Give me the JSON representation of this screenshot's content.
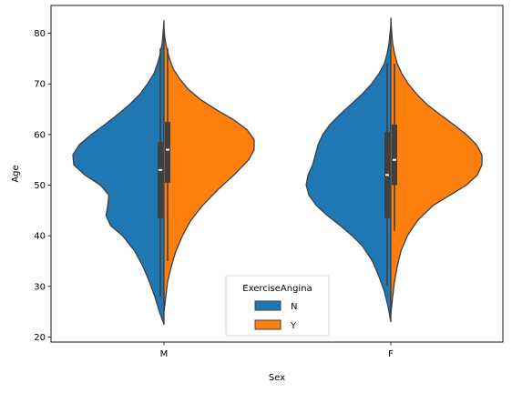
{
  "chart_data": {
    "type": "violin",
    "split": true,
    "xlabel": "Sex",
    "ylabel": "Age",
    "categories": [
      "M",
      "F"
    ],
    "ylim": [
      19,
      85.5
    ],
    "yticks": [
      20,
      30,
      40,
      50,
      60,
      70,
      80
    ],
    "grid": false,
    "legend": {
      "title": "ExerciseAngina",
      "placement": "lower-center",
      "entries": [
        "N",
        "Y"
      ]
    },
    "series": [
      {
        "name": "N",
        "color": "#1f77b4",
        "side": "left",
        "violins": [
          {
            "category": "M",
            "min": 22.5,
            "max": 82.5,
            "q1": 43.5,
            "median": 53,
            "q3": 58.5,
            "whisker_low": 28,
            "whisker_high": 77,
            "density": [
              [
                22.5,
                0
              ],
              [
                25,
                0.05
              ],
              [
                28,
                0.1
              ],
              [
                31,
                0.16
              ],
              [
                34,
                0.23
              ],
              [
                37,
                0.32
              ],
              [
                40,
                0.45
              ],
              [
                42,
                0.58
              ],
              [
                44,
                0.63
              ],
              [
                46,
                0.61
              ],
              [
                48,
                0.6
              ],
              [
                50,
                0.69
              ],
              [
                52,
                0.86
              ],
              [
                54,
                0.98
              ],
              [
                56,
                0.99
              ],
              [
                58,
                0.92
              ],
              [
                60,
                0.79
              ],
              [
                62,
                0.64
              ],
              [
                64,
                0.5
              ],
              [
                66,
                0.37
              ],
              [
                68,
                0.26
              ],
              [
                70,
                0.18
              ],
              [
                72,
                0.11
              ],
              [
                74,
                0.07
              ],
              [
                76,
                0.04
              ],
              [
                78,
                0.02
              ],
              [
                80,
                0.01
              ],
              [
                82.5,
                0
              ]
            ]
          },
          {
            "category": "F",
            "min": 23,
            "max": 81.5,
            "q1": 43.5,
            "median": 52,
            "q3": 60.5,
            "whisker_low": 30,
            "whisker_high": 74,
            "density": [
              [
                23,
                0
              ],
              [
                26,
                0.03
              ],
              [
                29,
                0.07
              ],
              [
                32,
                0.13
              ],
              [
                35,
                0.2
              ],
              [
                38,
                0.31
              ],
              [
                40,
                0.42
              ],
              [
                42,
                0.55
              ],
              [
                44,
                0.69
              ],
              [
                46,
                0.81
              ],
              [
                48,
                0.89
              ],
              [
                50,
                0.92
              ],
              [
                52,
                0.9
              ],
              [
                54,
                0.85
              ],
              [
                56,
                0.82
              ],
              [
                58,
                0.79
              ],
              [
                60,
                0.74
              ],
              [
                62,
                0.66
              ],
              [
                64,
                0.55
              ],
              [
                66,
                0.43
              ],
              [
                68,
                0.31
              ],
              [
                70,
                0.21
              ],
              [
                72,
                0.13
              ],
              [
                74,
                0.07
              ],
              [
                76,
                0.04
              ],
              [
                78,
                0.02
              ],
              [
                81.5,
                0
              ]
            ]
          }
        ]
      },
      {
        "name": "Y",
        "color": "#ff7f0e",
        "side": "right",
        "violins": [
          {
            "category": "M",
            "min": 25,
            "max": 81,
            "q1": 50.5,
            "median": 57,
            "q3": 62.5,
            "whisker_low": 35,
            "whisker_high": 77,
            "density": [
              [
                25,
                0
              ],
              [
                28,
                0.02
              ],
              [
                31,
                0.04
              ],
              [
                34,
                0.08
              ],
              [
                37,
                0.13
              ],
              [
                40,
                0.2
              ],
              [
                43,
                0.29
              ],
              [
                46,
                0.42
              ],
              [
                49,
                0.58
              ],
              [
                52,
                0.76
              ],
              [
                55,
                0.92
              ],
              [
                57,
                0.98
              ],
              [
                59,
                0.98
              ],
              [
                61,
                0.9
              ],
              [
                63,
                0.75
              ],
              [
                65,
                0.56
              ],
              [
                67,
                0.39
              ],
              [
                69,
                0.26
              ],
              [
                71,
                0.17
              ],
              [
                73,
                0.1
              ],
              [
                75,
                0.06
              ],
              [
                77,
                0.03
              ],
              [
                79,
                0.01
              ],
              [
                81,
                0
              ]
            ]
          },
          {
            "category": "F",
            "min": 24.5,
            "max": 83,
            "q1": 50,
            "median": 55,
            "q3": 62,
            "whisker_low": 41,
            "whisker_high": 74,
            "density": [
              [
                24.5,
                0
              ],
              [
                28,
                0.02
              ],
              [
                31,
                0.04
              ],
              [
                34,
                0.07
              ],
              [
                37,
                0.11
              ],
              [
                40,
                0.18
              ],
              [
                43,
                0.29
              ],
              [
                46,
                0.46
              ],
              [
                48,
                0.64
              ],
              [
                50,
                0.82
              ],
              [
                52,
                0.94
              ],
              [
                54,
                0.99
              ],
              [
                56,
                0.99
              ],
              [
                58,
                0.93
              ],
              [
                60,
                0.82
              ],
              [
                62,
                0.68
              ],
              [
                64,
                0.53
              ],
              [
                66,
                0.39
              ],
              [
                68,
                0.28
              ],
              [
                70,
                0.19
              ],
              [
                72,
                0.12
              ],
              [
                74,
                0.07
              ],
              [
                76,
                0.04
              ],
              [
                78,
                0.02
              ],
              [
                80,
                0.01
              ],
              [
                83,
                0
              ]
            ]
          }
        ]
      }
    ]
  }
}
